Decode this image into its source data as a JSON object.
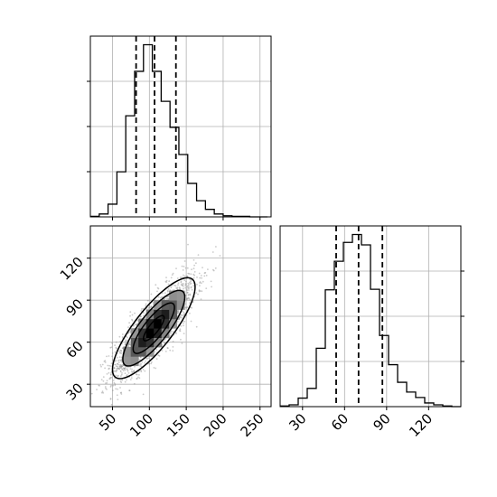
{
  "chart_data": {
    "type": "corner",
    "title": "",
    "grid": true,
    "colors": {
      "line": "#000000",
      "grid": "#b0b0b0",
      "points": "#8c8c8c"
    },
    "quantiles_shown": [
      0.16,
      0.5,
      0.84
    ],
    "params": [
      {
        "range": [
          20,
          265
        ],
        "ticks": [
          50,
          100,
          150,
          200,
          250
        ],
        "tick_labels": [
          "50",
          "100",
          "150",
          "200",
          "250"
        ],
        "quantiles": [
          82,
          107,
          136
        ],
        "histogram": {
          "bin_edges": [
            20,
            32,
            44,
            56,
            68,
            80,
            92,
            104,
            116,
            128,
            140,
            152,
            164,
            176,
            188,
            200,
            212,
            224,
            236,
            248,
            260
          ],
          "counts": [
            1,
            5,
            22,
            78,
            175,
            252,
            298,
            252,
            200,
            155,
            108,
            58,
            28,
            13,
            5,
            2,
            1,
            1,
            0,
            0
          ]
        }
      },
      {
        "range": [
          14,
          143
        ],
        "ticks": [
          30,
          60,
          90,
          120
        ],
        "tick_labels": [
          "30",
          "60",
          "90",
          "120"
        ],
        "quantiles": [
          54,
          70,
          87
        ],
        "histogram": {
          "bin_edges": [
            14,
            20.45,
            26.9,
            33.35,
            39.8,
            46.25,
            52.7,
            59.15,
            65.6,
            72.05,
            78.5,
            84.95,
            91.4,
            97.85,
            104.3,
            110.75,
            117.2,
            123.65,
            130.1,
            136.55,
            143
          ],
          "counts": [
            1,
            3,
            14,
            30,
            96,
            192,
            239,
            270,
            283,
            266,
            193,
            117,
            69,
            40,
            24,
            15,
            6,
            3,
            1,
            0
          ]
        }
      }
    ],
    "joint_2d": {
      "x_param": 0,
      "y_param": 1,
      "center": [
        106,
        70
      ],
      "sd": [
        28,
        18
      ],
      "correlation": 0.82,
      "n_points": 2000,
      "contour_levels_sigma": [
        0.5,
        1.0,
        1.5,
        2.0
      ]
    }
  }
}
